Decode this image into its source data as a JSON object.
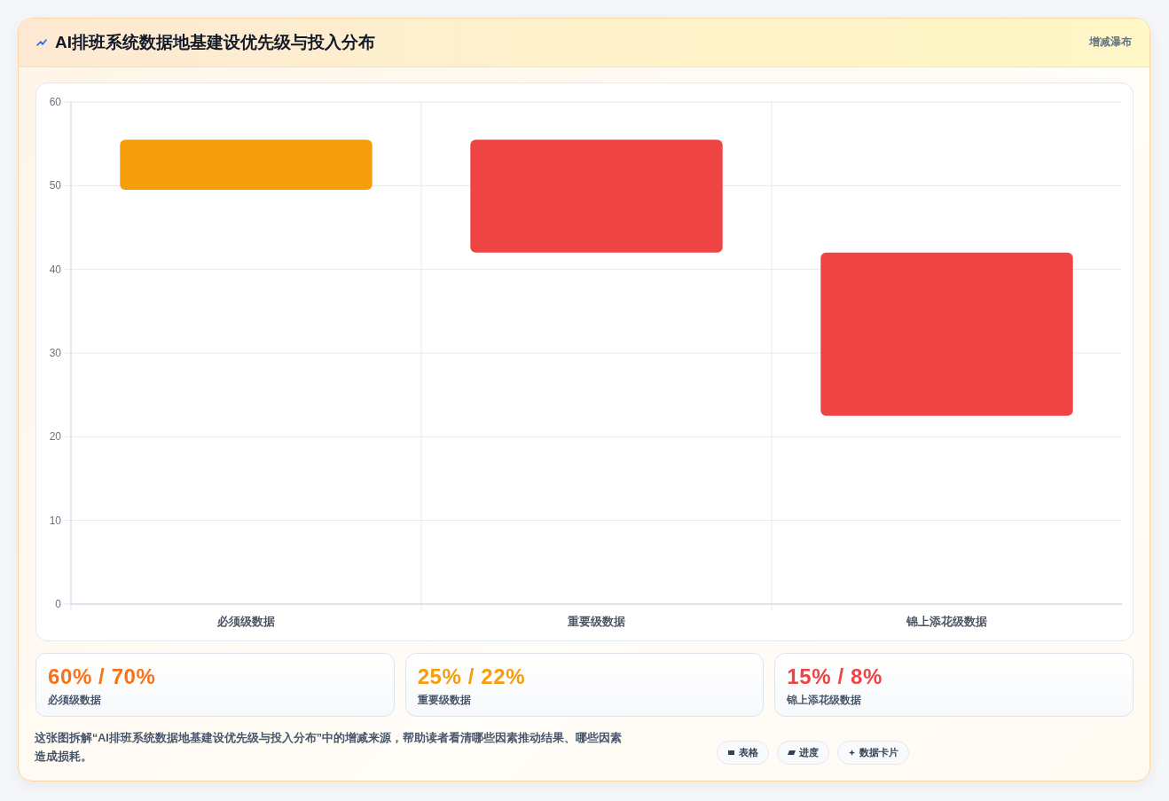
{
  "chart_data": [
    {
      "type": "bar",
      "title": "AI排班系统数据地基建设优先级与投入分布",
      "categories": [
        "必须级数据",
        "重要级数据",
        "锦上添花级数据"
      ],
      "base": [
        49.5,
        42,
        22.5
      ],
      "values": [
        6,
        13.5,
        19.5
      ],
      "colors": [
        "#f59e0b",
        "#ef4444",
        "#ef4444"
      ],
      "ylim": [
        0,
        60
      ],
      "yticks": [
        0,
        10,
        20,
        30,
        40,
        50,
        60
      ],
      "grid": true,
      "annotations": [
        "增减瀑布",
        "这张图拆解“AI排班系统数据地基建设优先级与投入分布”中的增减来源，帮助读者看清哪些因素推动结果、哪些因素造成损耗。",
        "表格",
        "进度",
        "数据卡片"
      ]
    },
    {
      "type": "other",
      "annotations": [
        "60% / 70%",
        "必须级数据",
        "25% / 22%",
        "重要级数据",
        "15% / 8%",
        "锦上添花级数据"
      ],
      "colors": [
        "#f97316",
        "#f59e0b",
        "#ef4444"
      ]
    }
  ]
}
